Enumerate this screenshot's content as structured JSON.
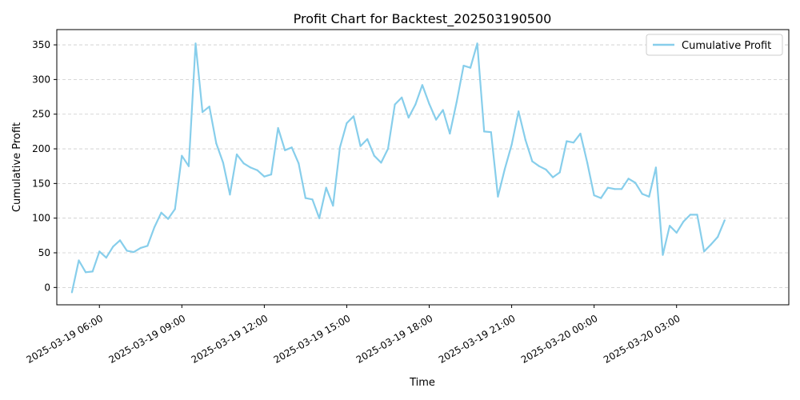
{
  "chart_data": {
    "type": "line",
    "title": "Profit Chart for Backtest_202503190500",
    "xlabel": "Time",
    "ylabel": "Cumulative Profit",
    "xlim": [
      "2025-03-19 04:27",
      "2025-03-20 07:05"
    ],
    "ylim": [
      -25,
      372
    ],
    "yticks": [
      0,
      50,
      100,
      150,
      200,
      250,
      300,
      350
    ],
    "xticks": [
      "2025-03-19 06:00",
      "2025-03-19 09:00",
      "2025-03-19 12:00",
      "2025-03-19 15:00",
      "2025-03-19 18:00",
      "2025-03-19 21:00",
      "2025-03-20 00:00",
      "2025-03-20 03:00"
    ],
    "grid": "horizontal dashed",
    "legend_position": "top-right",
    "series": [
      {
        "name": "Cumulative Profit",
        "color": "#87ceeb",
        "points": [
          [
            "2025-03-19 05:00",
            -7
          ],
          [
            "2025-03-19 05:15",
            39
          ],
          [
            "2025-03-19 05:30",
            22
          ],
          [
            "2025-03-19 05:45",
            23
          ],
          [
            "2025-03-19 06:00",
            52
          ],
          [
            "2025-03-19 06:15",
            43
          ],
          [
            "2025-03-19 06:30",
            59
          ],
          [
            "2025-03-19 06:45",
            68
          ],
          [
            "2025-03-19 07:00",
            53
          ],
          [
            "2025-03-19 07:15",
            51
          ],
          [
            "2025-03-19 07:30",
            57
          ],
          [
            "2025-03-19 07:45",
            60
          ],
          [
            "2025-03-19 08:00",
            87
          ],
          [
            "2025-03-19 08:15",
            108
          ],
          [
            "2025-03-19 08:30",
            99
          ],
          [
            "2025-03-19 08:45",
            113
          ],
          [
            "2025-03-19 09:00",
            190
          ],
          [
            "2025-03-19 09:15",
            175
          ],
          [
            "2025-03-19 09:30",
            352
          ],
          [
            "2025-03-19 09:45",
            253
          ],
          [
            "2025-03-19 10:00",
            261
          ],
          [
            "2025-03-19 10:15",
            208
          ],
          [
            "2025-03-19 10:30",
            180
          ],
          [
            "2025-03-19 10:45",
            134
          ],
          [
            "2025-03-19 11:00",
            192
          ],
          [
            "2025-03-19 11:15",
            179
          ],
          [
            "2025-03-19 11:30",
            173
          ],
          [
            "2025-03-19 11:45",
            169
          ],
          [
            "2025-03-19 12:00",
            160
          ],
          [
            "2025-03-19 12:15",
            163
          ],
          [
            "2025-03-19 12:30",
            230
          ],
          [
            "2025-03-19 12:45",
            198
          ],
          [
            "2025-03-19 13:00",
            202
          ],
          [
            "2025-03-19 13:15",
            179
          ],
          [
            "2025-03-19 13:30",
            129
          ],
          [
            "2025-03-19 13:45",
            127
          ],
          [
            "2025-03-19 14:00",
            100
          ],
          [
            "2025-03-19 14:15",
            144
          ],
          [
            "2025-03-19 14:30",
            118
          ],
          [
            "2025-03-19 14:45",
            202
          ],
          [
            "2025-03-19 15:00",
            237
          ],
          [
            "2025-03-19 15:15",
            247
          ],
          [
            "2025-03-19 15:30",
            204
          ],
          [
            "2025-03-19 15:45",
            214
          ],
          [
            "2025-03-19 16:00",
            190
          ],
          [
            "2025-03-19 16:15",
            180
          ],
          [
            "2025-03-19 16:30",
            200
          ],
          [
            "2025-03-19 16:45",
            264
          ],
          [
            "2025-03-19 17:00",
            274
          ],
          [
            "2025-03-19 17:15",
            245
          ],
          [
            "2025-03-19 17:30",
            264
          ],
          [
            "2025-03-19 17:45",
            292
          ],
          [
            "2025-03-19 18:00",
            265
          ],
          [
            "2025-03-19 18:15",
            242
          ],
          [
            "2025-03-19 18:30",
            256
          ],
          [
            "2025-03-19 18:45",
            222
          ],
          [
            "2025-03-19 19:00",
            268
          ],
          [
            "2025-03-19 19:15",
            320
          ],
          [
            "2025-03-19 19:30",
            317
          ],
          [
            "2025-03-19 19:45",
            352
          ],
          [
            "2025-03-19 20:00",
            225
          ],
          [
            "2025-03-19 20:15",
            224
          ],
          [
            "2025-03-19 20:30",
            131
          ],
          [
            "2025-03-19 20:45",
            171
          ],
          [
            "2025-03-19 21:00",
            206
          ],
          [
            "2025-03-19 21:15",
            254
          ],
          [
            "2025-03-19 21:30",
            213
          ],
          [
            "2025-03-19 21:45",
            182
          ],
          [
            "2025-03-19 22:00",
            175
          ],
          [
            "2025-03-19 22:15",
            170
          ],
          [
            "2025-03-19 22:30",
            159
          ],
          [
            "2025-03-19 22:45",
            166
          ],
          [
            "2025-03-19 23:00",
            211
          ],
          [
            "2025-03-19 23:15",
            209
          ],
          [
            "2025-03-19 23:30",
            222
          ],
          [
            "2025-03-19 23:45",
            180
          ],
          [
            "2025-03-20 00:00",
            133
          ],
          [
            "2025-03-20 00:15",
            129
          ],
          [
            "2025-03-20 00:30",
            144
          ],
          [
            "2025-03-20 00:45",
            142
          ],
          [
            "2025-03-20 01:00",
            142
          ],
          [
            "2025-03-20 01:15",
            157
          ],
          [
            "2025-03-20 01:30",
            151
          ],
          [
            "2025-03-20 01:45",
            135
          ],
          [
            "2025-03-20 02:00",
            131
          ],
          [
            "2025-03-20 02:15",
            173
          ],
          [
            "2025-03-20 02:30",
            47
          ],
          [
            "2025-03-20 02:45",
            89
          ],
          [
            "2025-03-20 03:00",
            79
          ],
          [
            "2025-03-20 03:15",
            95
          ],
          [
            "2025-03-20 03:30",
            105
          ],
          [
            "2025-03-20 03:45",
            105
          ],
          [
            "2025-03-20 04:00",
            52
          ],
          [
            "2025-03-20 04:15",
            62
          ],
          [
            "2025-03-20 04:30",
            73
          ],
          [
            "2025-03-20 04:45",
            97
          ]
        ]
      }
    ]
  }
}
